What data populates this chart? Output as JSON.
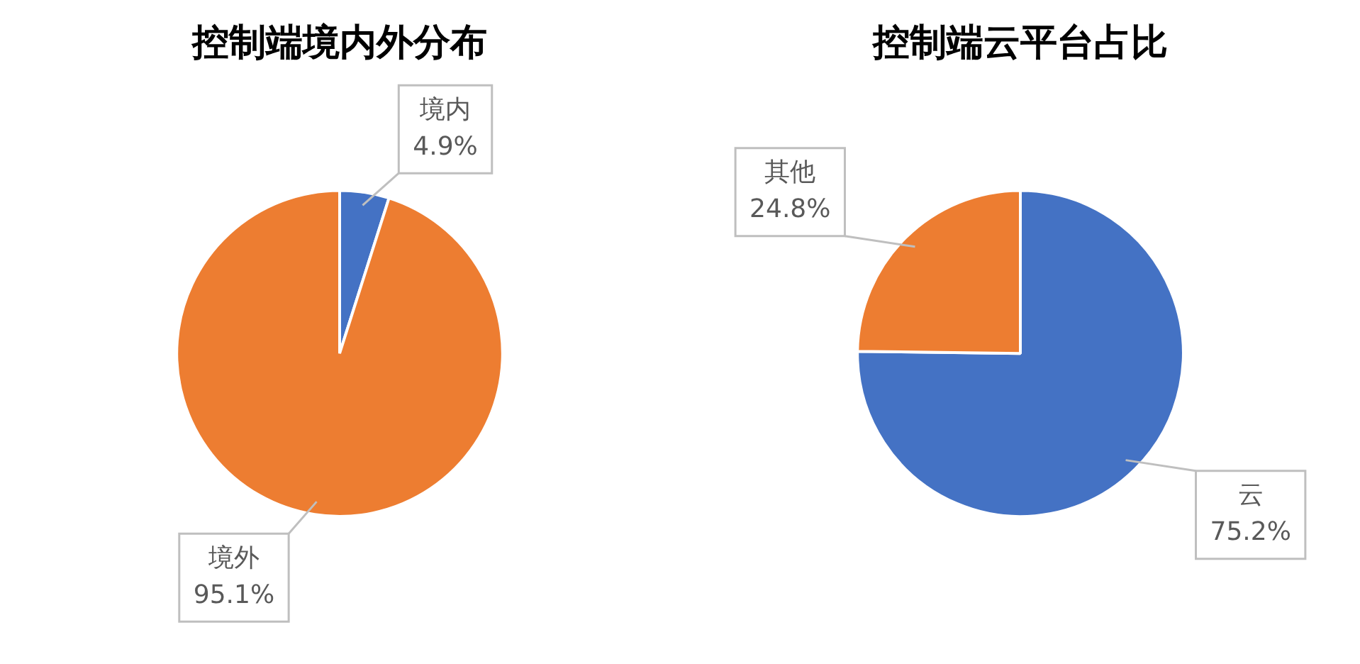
{
  "chart_data": [
    {
      "type": "pie",
      "title": "控制端境内外分布",
      "categories": [
        "境内",
        "境外"
      ],
      "values": [
        4.9,
        95.1
      ],
      "colors": [
        "#4472c4",
        "#ed7d31"
      ],
      "value_labels": [
        "4.9%",
        "95.1%"
      ]
    },
    {
      "type": "pie",
      "title": "控制端云平台占比",
      "categories": [
        "云",
        "其他"
      ],
      "values": [
        75.2,
        24.8
      ],
      "colors": [
        "#4472c4",
        "#ed7d31"
      ],
      "value_labels": [
        "75.2%",
        "24.8%"
      ]
    }
  ]
}
